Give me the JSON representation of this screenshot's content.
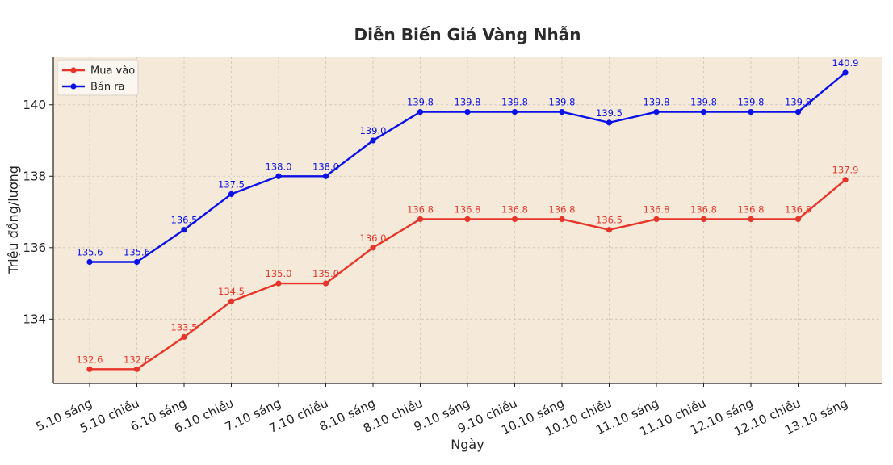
{
  "chart_data": {
    "type": "line",
    "title": "Diễn Biến Giá Vàng Nhẫn",
    "xlabel": "Ngày",
    "ylabel": "Triệu đồng/lượng",
    "categories": [
      "5.10 sáng",
      "5.10 chiều",
      "6.10 sáng",
      "6.10 chiều",
      "7.10 sáng",
      "7.10 chiều",
      "8.10 sáng",
      "8.10 chiều",
      "9.10 sáng",
      "9.10 chiều",
      "10.10 sáng",
      "10.10 chiều",
      "11.10 sáng",
      "11.10 chiều",
      "12.10 sáng",
      "12.10 chiều",
      "13.10 sáng"
    ],
    "ylim": [
      132.2,
      141.35
    ],
    "yticks": [
      134,
      136,
      138,
      140
    ],
    "grid": true,
    "legend_position": "top-left",
    "background_color": "#f5ead9",
    "series": [
      {
        "name": "Mua vào",
        "color": "#e8352b",
        "values": [
          132.6,
          132.6,
          133.5,
          134.5,
          135.0,
          135.0,
          136.0,
          136.8,
          136.8,
          136.8,
          136.8,
          136.5,
          136.8,
          136.8,
          136.8,
          136.8,
          137.9
        ],
        "labels": [
          "132.6",
          "132.6",
          "133.5",
          "134.5",
          "135.0",
          "135.0",
          "136.0",
          "136.8",
          "136.8",
          "136.8",
          "136.8",
          "136.5",
          "136.8",
          "136.8",
          "136.8",
          "136.8",
          "137.9"
        ]
      },
      {
        "name": "Bán ra",
        "color": "#0b12e8",
        "values": [
          135.6,
          135.6,
          136.5,
          137.5,
          138.0,
          138.0,
          139.0,
          139.8,
          139.8,
          139.8,
          139.8,
          139.5,
          139.8,
          139.8,
          139.8,
          139.8,
          140.9
        ],
        "labels": [
          "135.6",
          "135.6",
          "136.5",
          "137.5",
          "138.0",
          "138.0",
          "139.0",
          "139.8",
          "139.8",
          "139.8",
          "139.8",
          "139.5",
          "139.8",
          "139.8",
          "139.8",
          "139.8",
          "140.9"
        ]
      }
    ]
  }
}
